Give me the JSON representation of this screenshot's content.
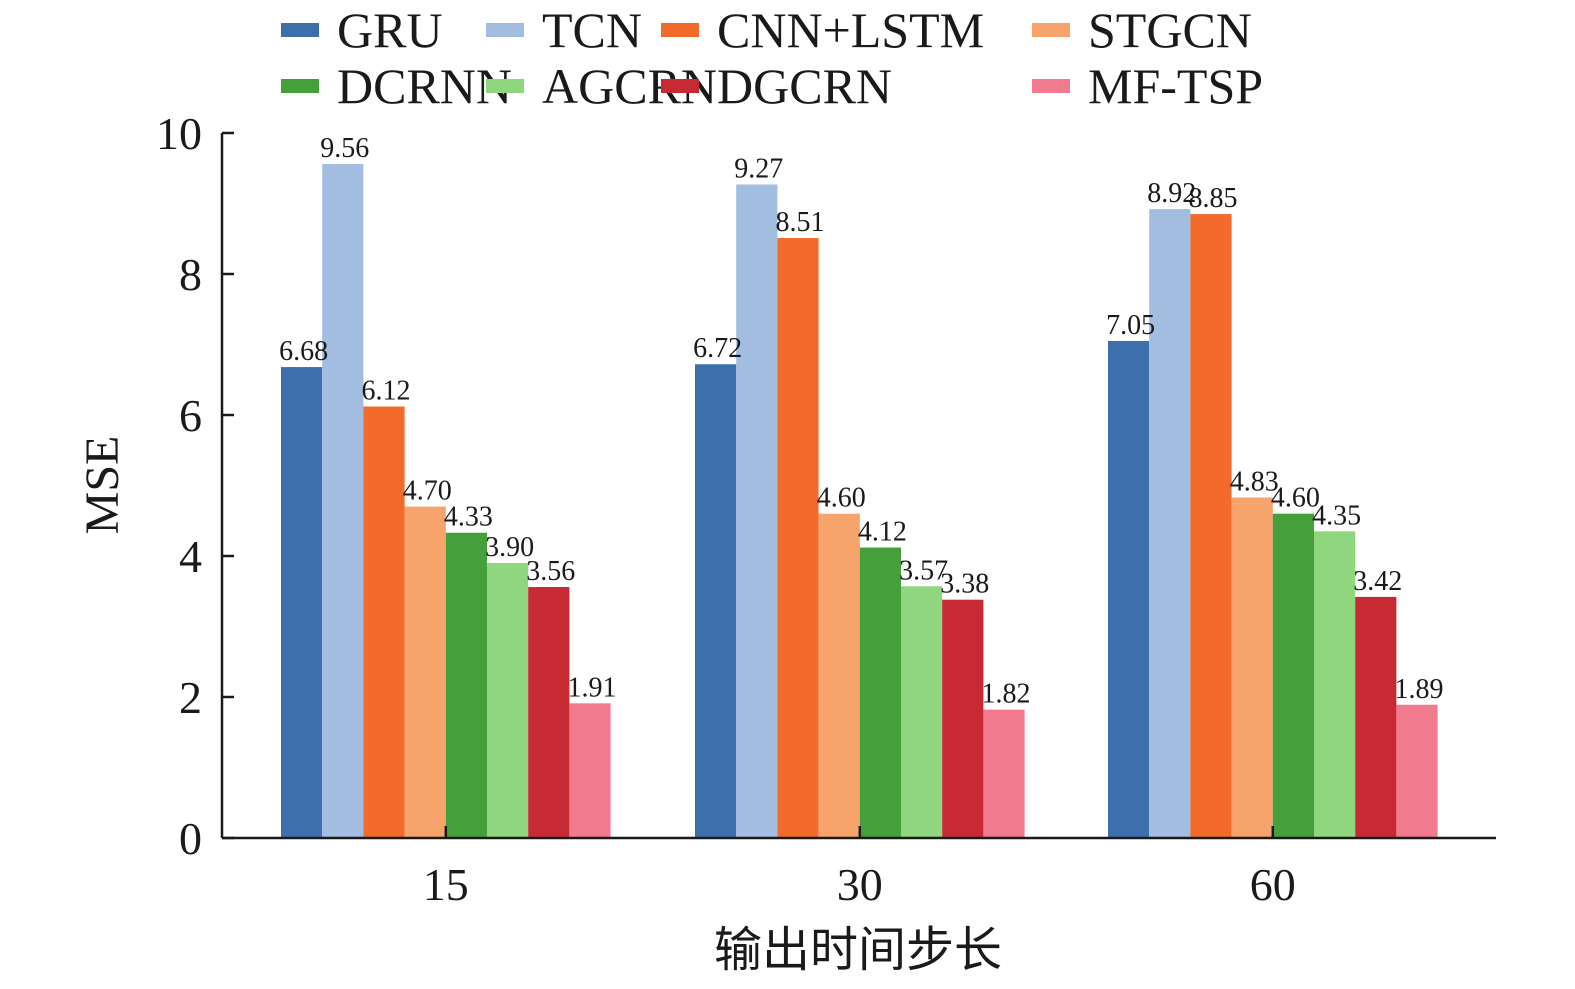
{
  "chart_data": {
    "type": "bar",
    "categories": [
      "15",
      "30",
      "60"
    ],
    "xlabel": "输出时间步长",
    "ylabel": "MSE",
    "ylim": [
      0,
      10
    ],
    "yticks": [
      0,
      2,
      4,
      6,
      8,
      10
    ],
    "legend_position": "top",
    "grid": false,
    "series": [
      {
        "name": "GRU",
        "color": "#3d6fad",
        "values": [
          6.68,
          6.72,
          7.05
        ],
        "labels": [
          "6.68",
          "6.72",
          "7.05"
        ]
      },
      {
        "name": "TCN",
        "color": "#a3bde0",
        "values": [
          9.56,
          9.27,
          8.92
        ],
        "labels": [
          "9.56",
          "9.27",
          "8.92"
        ]
      },
      {
        "name": "CNN+LSTM",
        "color": "#f26b2b",
        "values": [
          6.12,
          8.51,
          8.85
        ],
        "labels": [
          "6.12",
          "8.51",
          "8.85"
        ]
      },
      {
        "name": "STGCN",
        "color": "#f6a46b",
        "values": [
          4.7,
          4.6,
          4.83
        ],
        "labels": [
          "4.70",
          "4.60",
          "4.83"
        ]
      },
      {
        "name": "DCRNN",
        "color": "#45a03c",
        "values": [
          4.33,
          4.12,
          4.6
        ],
        "labels": [
          "4.33",
          "4.12",
          "4.60"
        ]
      },
      {
        "name": "AGCRN",
        "color": "#8fd67e",
        "values": [
          3.9,
          3.57,
          4.35
        ],
        "labels": [
          "3.90",
          "3.57",
          "4.35"
        ]
      },
      {
        "name": "DGCRN",
        "color": "#c72a35",
        "values": [
          3.56,
          3.38,
          3.42
        ],
        "labels": [
          "3.56",
          "3.38",
          "3.42"
        ]
      },
      {
        "name": "MF-TSP",
        "color": "#f27a8f",
        "values": [
          1.91,
          1.82,
          1.89
        ],
        "labels": [
          "1.91",
          "1.82",
          "1.89"
        ]
      }
    ]
  }
}
